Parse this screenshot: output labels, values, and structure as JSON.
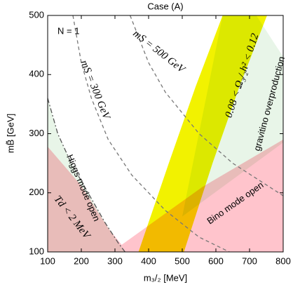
{
  "chart_data": {
    "type": "region",
    "title": "Case (A)",
    "x_label": "m₃/₂ [MeV]",
    "y_label": "mB̃ [GeV]",
    "xlim": [
      100,
      800
    ],
    "ylim": [
      100,
      500
    ],
    "xticks": [
      100,
      200,
      300,
      400,
      500,
      600,
      700,
      800
    ],
    "yticks": [
      100,
      200,
      300,
      400,
      500
    ],
    "grid": false,
    "regions": [
      {
        "color": "#e8f5e8",
        "x": [
          100,
          100,
          130,
          170,
          220,
          270,
          310,
          330
        ],
        "y": [
          100,
          360,
          300,
          250,
          200,
          150,
          115,
          100
        ]
      },
      {
        "color": "#e8f5e8",
        "x": [
          500,
          800,
          800,
          720,
          620
        ],
        "y": [
          160,
          285,
          430,
          500,
          500
        ]
      },
      {
        "color": "#ffc4cc",
        "x": [
          100,
          100,
          200,
          280,
          320,
          560,
          800,
          800
        ],
        "y": [
          100,
          278,
          212,
          140,
          112,
          210,
          290,
          100
        ]
      },
      {
        "color": "#f2f200",
        "x": [
          370,
          460,
          540,
          620,
          752,
          670,
          590,
          505
        ],
        "y": [
          100,
          250,
          380,
          500,
          500,
          380,
          250,
          100
        ]
      }
    ],
    "curves": [
      {
        "color": "#777777",
        "dash": "5,4",
        "x": [
          175,
          200,
          230,
          280,
          350,
          450,
          550,
          640
        ],
        "y": [
          500,
          420,
          360,
          290,
          230,
          170,
          125,
          100
        ]
      },
      {
        "color": "#777777",
        "dash": "5,4",
        "x": [
          345,
          400,
          450,
          550,
          650,
          800
        ],
        "y": [
          500,
          420,
          370,
          300,
          250,
          195
        ]
      },
      {
        "color": "#555555",
        "dash": "7,3,2,3",
        "x": [
          100,
          130,
          170,
          220,
          270,
          310,
          330
        ],
        "y": [
          360,
          300,
          250,
          200,
          150,
          115,
          100
        ]
      }
    ],
    "annotations": [
      "N = 1",
      "mS = 300 GeV",
      "mS = 500 GeV",
      "0.08 < Ω₃/₂h² < 0.12",
      "gravitino overproduction",
      "Higgs mode open",
      "Td < 2 MeV",
      "Bino mode open"
    ]
  }
}
